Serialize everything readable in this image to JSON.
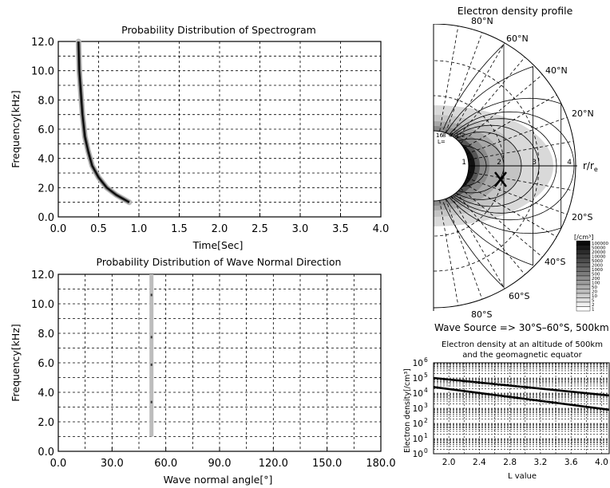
{
  "spectrogram": {
    "title": "Probability Distribution of Spectrogram",
    "xlabel": "Time[Sec]",
    "ylabel": "Frequency[kHz]",
    "xlim": [
      0.0,
      4.0
    ],
    "ylim": [
      0.0,
      12.0
    ],
    "xticks": [
      "0.0",
      "0.5",
      "1.0",
      "1.5",
      "2.0",
      "2.5",
      "3.0",
      "3.5",
      "4.0"
    ],
    "yticks": [
      "0.0",
      "2.0",
      "4.0",
      "6.0",
      "8.0",
      "10.0",
      "12.0"
    ]
  },
  "wave_normal": {
    "title": "Probability Distribution of Wave Normal Direction",
    "xlabel": "Wave normal angle[°]",
    "ylabel": "Frequency[kHz]",
    "xlim": [
      0.0,
      180.0
    ],
    "ylim": [
      0.0,
      12.0
    ],
    "xticks": [
      "0.0",
      "30.0",
      "60.0",
      "90.0",
      "120.0",
      "150.0",
      "180.0"
    ],
    "yticks": [
      "0.0",
      "2.0",
      "4.0",
      "6.0",
      "8.0",
      "10.0",
      "12.0"
    ]
  },
  "profile": {
    "title": "Electron density profile",
    "lat_labels_n": [
      "80°N",
      "60°N",
      "40°N",
      "20°N"
    ],
    "lat_labels_s": [
      "20°S",
      "40°S",
      "60°S",
      "80°S"
    ],
    "r_label": "r/r",
    "r_sub": "e",
    "r_ticks": [
      "1",
      "2",
      "3",
      "4"
    ],
    "small_l": [
      "16",
      "8",
      "4",
      "3",
      "2"
    ],
    "l_label": "L=",
    "colorbar_unit": "[/cm³]",
    "colorbar_labels": [
      "100000",
      "50000",
      "20000",
      "10000",
      "5000",
      "2000",
      "1000",
      "500",
      "200",
      "100",
      "50",
      "20",
      "10",
      "5",
      "2",
      "1"
    ]
  },
  "wave_source": "Wave Source => 30°S–60°S, 500km",
  "density_chart": {
    "title_line1": "Electron density at an altitude of 500km",
    "title_line2": "and the geomagnetic equator",
    "xlabel": "L value",
    "ylabel": "Electron density[/cm³]",
    "xticks": [
      "2.0",
      "2.4",
      "2.8",
      "3.2",
      "3.6",
      "4.0"
    ],
    "ytick_base": "10",
    "ytick_exps": [
      "0",
      "1",
      "2",
      "3",
      "4",
      "5",
      "6"
    ]
  },
  "chart_data": [
    {
      "type": "heatmap",
      "title": "Probability Distribution of Spectrogram",
      "xlabel": "Time[Sec]",
      "ylabel": "Frequency[kHz]",
      "xlim": [
        0.0,
        4.0
      ],
      "ylim": [
        0.0,
        12.0
      ],
      "grid": true,
      "series": [
        {
          "x": [
            0.25,
            0.26,
            0.28,
            0.3,
            0.33,
            0.37,
            0.42,
            0.5,
            0.6,
            0.72,
            0.88
          ],
          "y": [
            12.0,
            10.0,
            8.5,
            7.0,
            5.5,
            4.5,
            3.5,
            2.7,
            2.0,
            1.5,
            1.0
          ]
        }
      ]
    },
    {
      "type": "heatmap",
      "title": "Probability Distribution of Wave Normal Direction",
      "xlabel": "Wave normal angle[°]",
      "ylabel": "Frequency[kHz]",
      "xlim": [
        0.0,
        180.0
      ],
      "ylim": [
        0.0,
        12.0
      ],
      "grid": true,
      "series": [
        {
          "x": [
            52,
            52
          ],
          "y": [
            1.0,
            12.0
          ]
        }
      ]
    },
    {
      "type": "line",
      "title": "Electron density at an altitude of 500km and the geomagnetic equator",
      "xlabel": "L value",
      "ylabel": "Electron density[/cm³]",
      "xlim": [
        1.8,
        4.1
      ],
      "ylim": [
        1,
        1000000
      ],
      "log_y": true,
      "series": [
        {
          "x": [
            1.8,
            4.1
          ],
          "y": [
            100000,
            7000
          ]
        },
        {
          "x": [
            1.8,
            4.1
          ],
          "y": [
            25000,
            800
          ]
        }
      ]
    }
  ]
}
